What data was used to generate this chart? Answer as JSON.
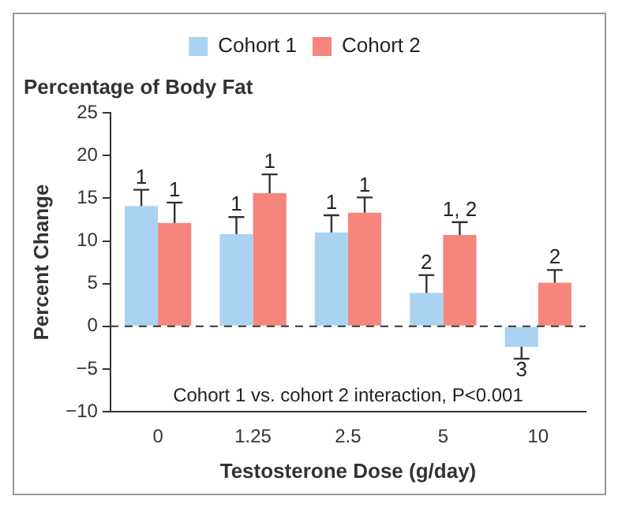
{
  "chart_data": {
    "type": "bar",
    "title": "Percentage of Body Fat",
    "xlabel": "Testosterone Dose (g/day)",
    "ylabel": "Percent Change",
    "categories": [
      "0",
      "1.25",
      "2.5",
      "5",
      "10"
    ],
    "series": [
      {
        "name": "Cohort 1",
        "color": "#a9d3f0",
        "values": [
          14.1,
          10.8,
          11.0,
          3.9,
          -2.4
        ],
        "errors": [
          [
            14.1,
            16.0
          ],
          [
            10.8,
            12.8
          ],
          [
            11.0,
            13.0
          ],
          [
            3.9,
            6.0
          ],
          [
            -3.8,
            -2.4
          ]
        ]
      },
      {
        "name": "Cohort 2",
        "color": "#f5857d",
        "values": [
          12.1,
          15.6,
          13.3,
          10.7,
          5.1
        ],
        "errors": [
          [
            12.1,
            14.5
          ],
          [
            15.6,
            17.8
          ],
          [
            13.3,
            15.1
          ],
          [
            10.7,
            12.2
          ],
          [
            5.1,
            6.6
          ]
        ]
      }
    ],
    "ylim": [
      -10,
      25
    ],
    "yticks": [
      -10,
      -5,
      0,
      5,
      10,
      15,
      20,
      25
    ],
    "grid": false,
    "legend": "top",
    "ref_lines": [
      {
        "axis": "y",
        "value": 0,
        "line_style": "dashed",
        "color": "#333333"
      }
    ],
    "annotations": [
      "Cohort 1 vs. cohort 2 interaction, P<0.001",
      {
        "text": "1",
        "x": "0",
        "y": 14.1
      },
      {
        "text": "1",
        "x": "1.25",
        "y": 10.8
      },
      {
        "text": "1",
        "x": "2.5",
        "y": 11.0
      },
      {
        "text": "2",
        "x": "5",
        "y": 3.9
      },
      {
        "text": "3",
        "x": "10",
        "y": -2.4
      },
      {
        "text": "1",
        "x": "0",
        "y": 12.1
      },
      {
        "text": "1",
        "x": "1.25",
        "y": 15.6
      },
      {
        "text": "1",
        "x": "2.5",
        "y": 13.3
      },
      {
        "text": "1, 2",
        "x": "5",
        "y": 10.7
      },
      {
        "text": "2",
        "x": "10",
        "y": 5.1
      }
    ]
  }
}
